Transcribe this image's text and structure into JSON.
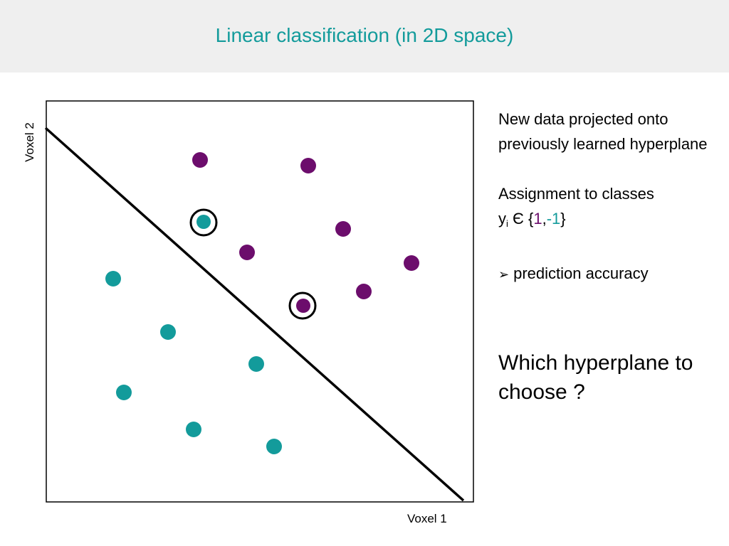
{
  "title": "Linear classification (in 2D space)",
  "axes": {
    "xlabel": "Voxel 1",
    "ylabel": "Voxel 2"
  },
  "colors": {
    "class_pos": "#6c0d6c",
    "class_neg": "#139b9b",
    "title": "#139b9b"
  },
  "text": {
    "para1": "New data projected onto previously learned hyperplane",
    "para2_line1": "Assignment to classes",
    "para2_y": "y",
    "para2_sub": "i",
    "para2_elem": "Є",
    "para2_open": "{",
    "class1": "1",
    "comma": ",",
    "class2": "-1",
    "para2_close": "}",
    "bullet": "prediction accuracy",
    "question": "Which hyperplane to choose ?"
  }
}
